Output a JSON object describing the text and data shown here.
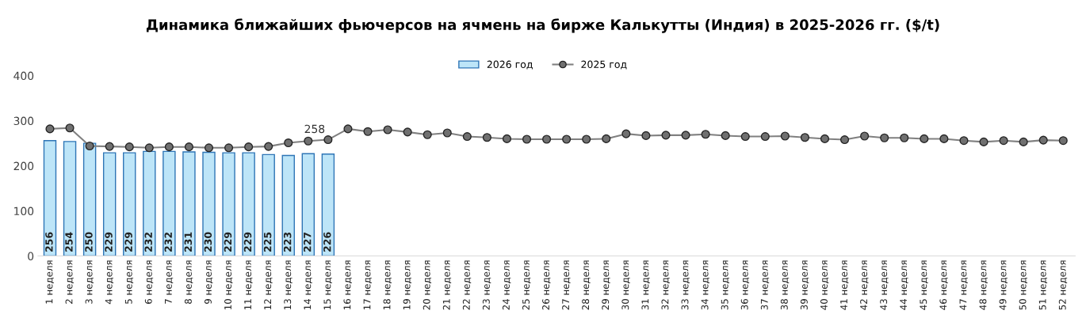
{
  "chart_data": {
    "type": "bar",
    "title": "Динамика ближайших фьючерсов на ячмень на бирже Калькутты (Индия) в 2025-2026 гг. ($/t)",
    "categories": [
      "1 неделя",
      "2 неделя",
      "3 неделя",
      "4 неделя",
      "5 неделя",
      "6 неделя",
      "7 неделя",
      "8 неделя",
      "9 неделя",
      "10 неделя",
      "11 неделя",
      "12 неделя",
      "13 неделя",
      "14 неделя",
      "15 неделя",
      "16 неделя",
      "17 неделя",
      "18 неделя",
      "19 неделя",
      "20 неделя",
      "21 неделя",
      "22 неделя",
      "23 неделя",
      "24 неделя",
      "25 неделя",
      "26 неделя",
      "27 неделя",
      "28 неделя",
      "29 неделя",
      "30 неделя",
      "31 неделя",
      "32 неделя",
      "33 неделя",
      "34 неделя",
      "35 неделя",
      "36 неделя",
      "37 неделя",
      "38 неделя",
      "39 неделя",
      "40 неделя",
      "41 неделя",
      "42 неделя",
      "43 неделя",
      "44 неделя",
      "45 неделя",
      "46 неделя",
      "47 неделя",
      "48 неделя",
      "49 неделя",
      "50 неделя",
      "51 неделя",
      "52 неделя"
    ],
    "series": [
      {
        "name": "2026 год",
        "color": "#bde5f8",
        "values": [
          256,
          254,
          250,
          229,
          229,
          232,
          232,
          231,
          230,
          229,
          229,
          225,
          223,
          227,
          226,
          null,
          null,
          null,
          null,
          null,
          null,
          null,
          null,
          null,
          null,
          null,
          null,
          null,
          null,
          null,
          null,
          null,
          null,
          null,
          null,
          null,
          null,
          null,
          null,
          null,
          null,
          null,
          null,
          null,
          null,
          null,
          null,
          null,
          null,
          null,
          null,
          null
        ],
        "value_labels": [
          "256",
          "254",
          "250",
          "229",
          "229",
          "232",
          "232",
          "231",
          "230",
          "229",
          "229",
          "225",
          "223",
          "227",
          "226",
          null,
          null,
          null,
          null,
          null,
          null,
          null,
          null,
          null,
          null,
          null,
          null,
          null,
          null,
          null,
          null,
          null,
          null,
          null,
          null,
          null,
          null,
          null,
          null,
          null,
          null,
          null,
          null,
          null,
          null,
          null,
          null,
          null,
          null,
          null,
          null,
          null
        ]
      },
      {
        "name": "2025 год",
        "type": "line",
        "color": "#808080",
        "marker": "circle",
        "values": [
          282,
          284,
          244,
          243,
          242,
          240,
          242,
          242,
          240,
          240,
          242,
          243,
          251,
          255,
          258,
          282,
          276,
          280,
          275,
          269,
          273,
          265,
          263,
          260,
          259,
          259,
          259,
          259,
          260,
          271,
          267,
          268,
          268,
          270,
          267,
          265,
          265,
          266,
          263,
          260,
          258,
          266,
          262,
          262,
          260,
          260,
          256,
          253,
          256,
          253,
          257,
          256
        ],
        "value_labels": [
          null,
          null,
          null,
          null,
          null,
          null,
          null,
          null,
          null,
          null,
          null,
          null,
          null,
          null,
          "258",
          null,
          null,
          null,
          null,
          null,
          null,
          null,
          null,
          null,
          null,
          null,
          null,
          null,
          null,
          null,
          null,
          null,
          null,
          null,
          null,
          null,
          null,
          null,
          null,
          null,
          null,
          null,
          null,
          null,
          null,
          null,
          null,
          null,
          null,
          null,
          null,
          null
        ]
      }
    ],
    "ylim": [
      0,
      400
    ],
    "yticks": [
      0,
      100,
      200,
      300,
      400
    ],
    "grid": false,
    "legend": "top"
  }
}
